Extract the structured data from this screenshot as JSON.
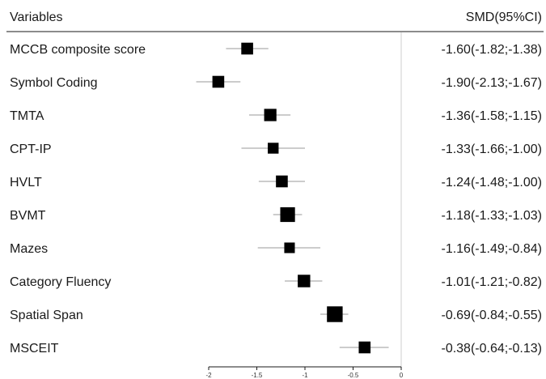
{
  "header": {
    "left": "Variables",
    "right": "SMD(95%CI)"
  },
  "chart_data": {
    "type": "forest",
    "x_ticks": [
      -2,
      -1.5,
      -1,
      -0.5,
      0
    ],
    "x_tick_labels": [
      "-2",
      "-1.5",
      "-1",
      "-0.5",
      "0"
    ],
    "xlim": [
      -2.0,
      0.0
    ],
    "reference_line": 0,
    "rows": [
      {
        "label": "MCCB composite score",
        "smd": -1.6,
        "lower": -1.82,
        "upper": -1.38,
        "weight": 0.55,
        "ci_text": "-1.60(-1.82;-1.38)"
      },
      {
        "label": "Symbol Coding",
        "smd": -1.9,
        "lower": -2.13,
        "upper": -1.67,
        "weight": 0.55,
        "ci_text": "-1.90(-2.13;-1.67)"
      },
      {
        "label": "TMTA",
        "smd": -1.36,
        "lower": -1.58,
        "upper": -1.15,
        "weight": 0.6,
        "ci_text": "-1.36(-1.58;-1.15)"
      },
      {
        "label": "CPT-IP",
        "smd": -1.33,
        "lower": -1.66,
        "upper": -1.0,
        "weight": 0.45,
        "ci_text": "-1.33(-1.66;-1.00)"
      },
      {
        "label": "HVLT",
        "smd": -1.24,
        "lower": -1.48,
        "upper": -1.0,
        "weight": 0.55,
        "ci_text": "-1.24(-1.48;-1.00)"
      },
      {
        "label": "BVMT",
        "smd": -1.18,
        "lower": -1.33,
        "upper": -1.03,
        "weight": 0.85,
        "ci_text": "-1.18(-1.33;-1.03)"
      },
      {
        "label": "Mazes",
        "smd": -1.16,
        "lower": -1.49,
        "upper": -0.84,
        "weight": 0.42,
        "ci_text": "-1.16(-1.49;-0.84)"
      },
      {
        "label": "Category Fluency",
        "smd": -1.01,
        "lower": -1.21,
        "upper": -0.82,
        "weight": 0.62,
        "ci_text": "-1.01(-1.21;-0.82)"
      },
      {
        "label": "Spatial Span",
        "smd": -0.69,
        "lower": -0.84,
        "upper": -0.55,
        "weight": 0.95,
        "ci_text": "-0.69(-0.84;-0.55)"
      },
      {
        "label": "MSCEIT",
        "smd": -0.38,
        "lower": -0.64,
        "upper": -0.13,
        "weight": 0.55,
        "ci_text": "-0.38(-0.64;-0.13)"
      }
    ]
  }
}
